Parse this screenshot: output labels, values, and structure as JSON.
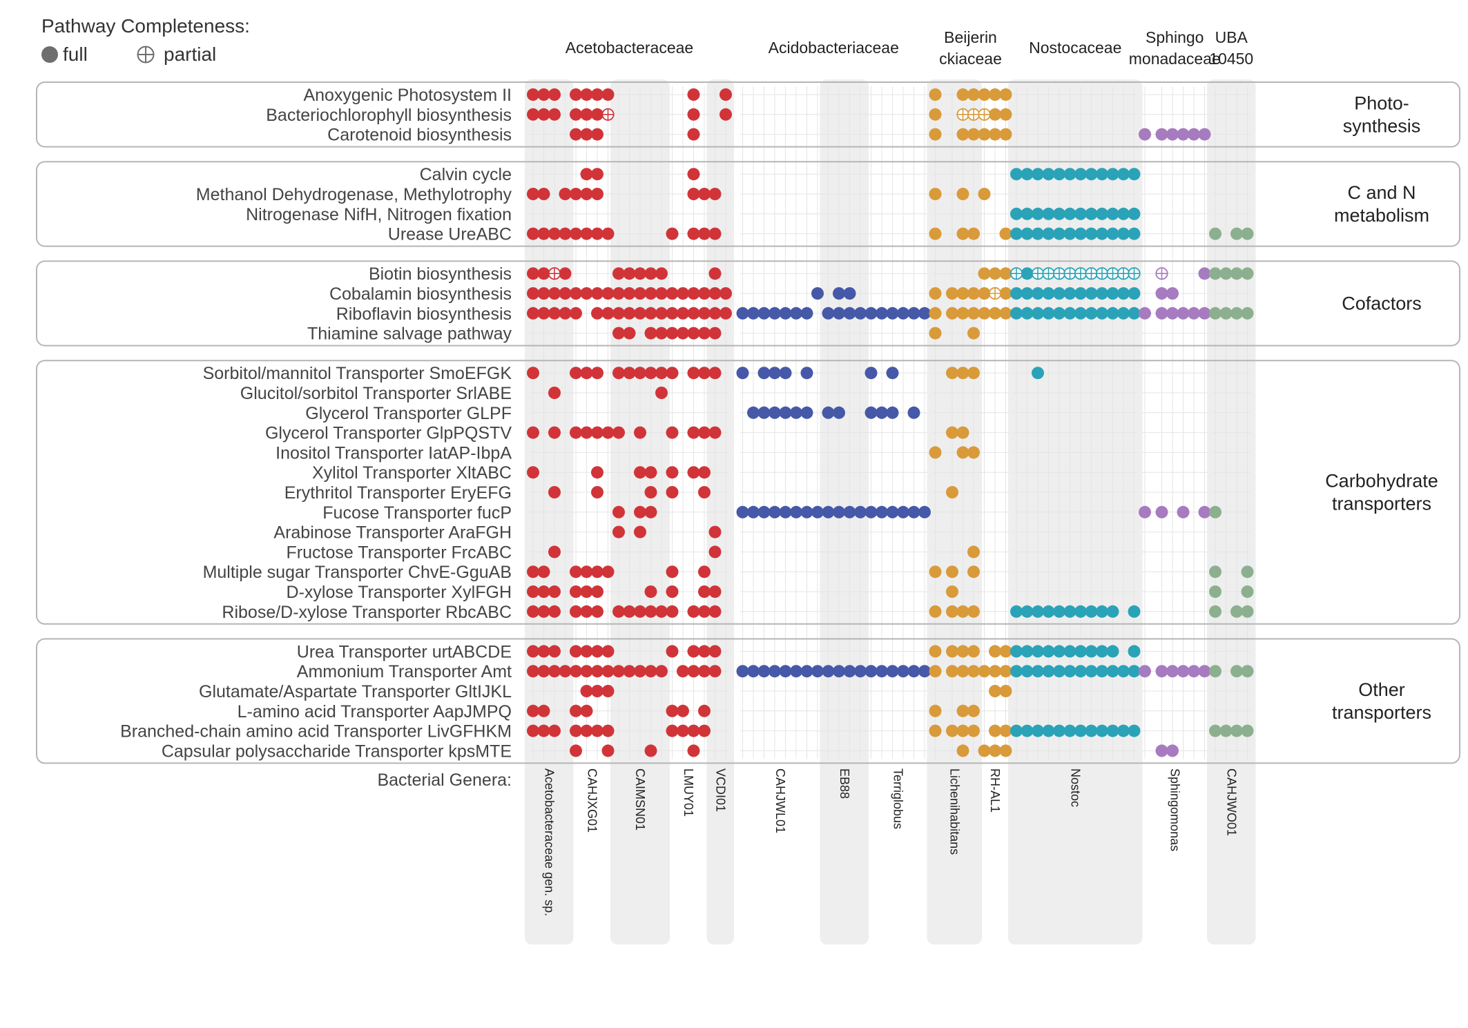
{
  "chart_data": {
    "type": "dot-matrix",
    "legend": {
      "title": "Pathway Completeness:",
      "items": [
        {
          "key": "full",
          "label": "full"
        },
        {
          "key": "partial",
          "label": "partial"
        }
      ]
    },
    "families": [
      {
        "id": "aceto",
        "lines": [
          "Acetobacteraceae"
        ],
        "columns": [
          0,
          18
        ],
        "color": "#d13438"
      },
      {
        "id": "acido",
        "lines": [
          "Acidobacteriaceae"
        ],
        "columns": [
          19,
          36
        ],
        "color": "#4658a8"
      },
      {
        "id": "beije",
        "lines": [
          "Beijerin",
          "ckiaceae"
        ],
        "columns": [
          37,
          43
        ],
        "color": "#d99a3a"
      },
      {
        "id": "nosto",
        "lines": [
          "Nostocaceae"
        ],
        "columns": [
          44,
          55
        ],
        "color": "#2aa3b8"
      },
      {
        "id": "sphin",
        "lines": [
          "Sphingo",
          "monadaceae"
        ],
        "columns": [
          56,
          61
        ],
        "color": "#a77bbf"
      },
      {
        "id": "uba",
        "lines": [
          "UBA",
          "10450"
        ],
        "columns": [
          62,
          65
        ],
        "color": "#8cb08f"
      }
    ],
    "genera_label": "Bacterial Genera:",
    "genera": [
      {
        "name": "Acetobacteraceae gen. sp.",
        "columns": [
          0,
          3
        ],
        "shaded": true
      },
      {
        "name": "CAHJXG01",
        "columns": [
          4,
          7
        ],
        "shaded": false
      },
      {
        "name": "CAIMSN01",
        "columns": [
          8,
          12
        ],
        "shaded": true
      },
      {
        "name": "LMUY01",
        "columns": [
          13,
          16
        ],
        "shaded": false
      },
      {
        "name": "VCDI01",
        "columns": [
          17,
          18
        ],
        "shaded": true
      },
      {
        "name": "CAHJWL01",
        "columns": [
          19,
          26
        ],
        "shaded": false
      },
      {
        "name": "EB88",
        "columns": [
          27,
          30
        ],
        "shaded": true
      },
      {
        "name": "Terriglobus",
        "columns": [
          31,
          36
        ],
        "shaded": false
      },
      {
        "name": "Lichenihabitans",
        "columns": [
          37,
          40
        ],
        "shaded": true
      },
      {
        "name": "RH-AL1",
        "columns": [
          41,
          43
        ],
        "shaded": false
      },
      {
        "name": "Nostoc",
        "columns": [
          44,
          55
        ],
        "shaded": true
      },
      {
        "name": "Sphingomonas",
        "columns": [
          56,
          61
        ],
        "shaded": false
      },
      {
        "name": "CAHJWO01",
        "columns": [
          62,
          65
        ],
        "shaded": true
      }
    ],
    "groups": [
      {
        "label_lines": [
          "Photo-",
          "synthesis"
        ],
        "rows": [
          {
            "label": "Anoxygenic Photosystem II",
            "full": [
              0,
              1,
              2,
              4,
              5,
              6,
              7,
              15,
              18,
              37,
              39,
              40,
              41,
              42,
              43
            ]
          },
          {
            "label": "Bacteriochlorophyll biosynthesis",
            "full": [
              0,
              1,
              2,
              4,
              5,
              6,
              15,
              18,
              37,
              42,
              43
            ],
            "partial": [
              7,
              39,
              40,
              41
            ]
          },
          {
            "label": "Carotenoid biosynthesis",
            "full": [
              4,
              5,
              6,
              15,
              37,
              39,
              40,
              41,
              42,
              43,
              56,
              57,
              58,
              59,
              60,
              61
            ]
          }
        ]
      },
      {
        "label_lines": [
          "C and N",
          "metabolism"
        ],
        "rows": [
          {
            "label": "Calvin cycle",
            "full": [
              5,
              6,
              15,
              44,
              45,
              46,
              47,
              48,
              49,
              50,
              51,
              52,
              53,
              54,
              55
            ]
          },
          {
            "label": "Methanol Dehydrogenase, Methylotrophy",
            "full": [
              0,
              1,
              3,
              4,
              5,
              6,
              15,
              16,
              17,
              37,
              39,
              41
            ]
          },
          {
            "label": "Nitrogenase NifH, Nitrogen fixation",
            "full": [
              44,
              45,
              46,
              47,
              48,
              49,
              50,
              51,
              52,
              53,
              54,
              55
            ]
          },
          {
            "label": "Urease UreABC",
            "full": [
              0,
              1,
              2,
              3,
              4,
              5,
              6,
              7,
              13,
              15,
              16,
              17,
              37,
              39,
              40,
              43,
              44,
              45,
              46,
              47,
              48,
              49,
              50,
              51,
              52,
              53,
              54,
              55,
              62,
              64,
              65
            ]
          }
        ]
      },
      {
        "label_lines": [
          "Cofactors"
        ],
        "rows": [
          {
            "label": "Biotin biosynthesis",
            "full": [
              0,
              1,
              3,
              8,
              9,
              10,
              11,
              12,
              17,
              41,
              42,
              43,
              45,
              61,
              62,
              63,
              64,
              65
            ],
            "partial": [
              2,
              44,
              46,
              47,
              48,
              49,
              50,
              51,
              52,
              53,
              54,
              55,
              57
            ]
          },
          {
            "label": "Cobalamin biosynthesis",
            "full": [
              0,
              1,
              2,
              3,
              4,
              5,
              6,
              7,
              8,
              9,
              10,
              11,
              12,
              13,
              14,
              15,
              16,
              17,
              18,
              26,
              28,
              29,
              37,
              38,
              39,
              40,
              41,
              43,
              44,
              45,
              46,
              47,
              48,
              49,
              50,
              51,
              52,
              53,
              54,
              55,
              57,
              58
            ],
            "partial": [
              42
            ]
          },
          {
            "label": "Riboflavin biosynthesis",
            "full": [
              0,
              1,
              2,
              3,
              4,
              6,
              7,
              8,
              9,
              10,
              11,
              12,
              13,
              14,
              15,
              16,
              17,
              18,
              19,
              20,
              21,
              22,
              23,
              24,
              25,
              27,
              28,
              29,
              30,
              31,
              32,
              33,
              34,
              35,
              36,
              37,
              38,
              39,
              40,
              41,
              42,
              43,
              44,
              45,
              46,
              47,
              48,
              49,
              50,
              51,
              52,
              53,
              54,
              55,
              56,
              57,
              58,
              59,
              60,
              61,
              62,
              63,
              64,
              65
            ]
          },
          {
            "label": "Thiamine salvage pathway",
            "full": [
              8,
              9,
              11,
              12,
              13,
              14,
              15,
              16,
              17,
              37,
              40
            ]
          }
        ]
      },
      {
        "label_lines": [
          "Carbohydrate",
          "transporters"
        ],
        "rows": [
          {
            "label": "Sorbitol/mannitol Transporter SmoEFGK",
            "full": [
              0,
              4,
              5,
              6,
              8,
              9,
              10,
              11,
              12,
              13,
              15,
              16,
              17,
              19,
              21,
              22,
              23,
              25,
              31,
              33,
              38,
              39,
              40,
              46
            ]
          },
          {
            "label": "Glucitol/sorbitol Transporter SrlABE",
            "full": [
              2,
              12
            ]
          },
          {
            "label": "Glycerol Transporter GLPF",
            "full": [
              20,
              21,
              22,
              23,
              24,
              25,
              27,
              28,
              31,
              32,
              33,
              35
            ]
          },
          {
            "label": "Glycerol Transporter GlpPQSTV",
            "full": [
              0,
              2,
              4,
              5,
              6,
              7,
              8,
              10,
              13,
              15,
              16,
              17,
              38,
              39
            ]
          },
          {
            "label": "Inositol Transporter IatAP-IbpA",
            "full": [
              37,
              39,
              40
            ]
          },
          {
            "label": "Xylitol Transporter XltABC",
            "full": [
              0,
              6,
              10,
              11,
              13,
              15,
              16
            ]
          },
          {
            "label": "Erythritol Transporter EryEFG",
            "full": [
              2,
              6,
              11,
              13,
              16,
              38
            ]
          },
          {
            "label": "Fucose Transporter fucP",
            "full": [
              8,
              10,
              11,
              19,
              20,
              21,
              22,
              23,
              24,
              25,
              26,
              27,
              28,
              29,
              30,
              31,
              32,
              33,
              34,
              35,
              36,
              56,
              57,
              59,
              61,
              62
            ]
          },
          {
            "label": "Arabinose Transporter AraFGH",
            "full": [
              8,
              10,
              17
            ]
          },
          {
            "label": "Fructose Transporter FrcABC",
            "full": [
              2,
              17,
              40
            ]
          },
          {
            "label": "Multiple sugar Transporter ChvE-GguAB",
            "full": [
              0,
              1,
              4,
              5,
              6,
              7,
              13,
              16,
              37,
              38,
              40,
              62,
              65
            ]
          },
          {
            "label": "D-xylose Transporter XylFGH",
            "full": [
              0,
              1,
              2,
              4,
              5,
              6,
              11,
              13,
              16,
              17,
              38,
              62,
              65
            ]
          },
          {
            "label": "Ribose/D-xylose Transporter RbcABC",
            "full": [
              0,
              1,
              2,
              4,
              5,
              6,
              8,
              9,
              10,
              11,
              12,
              13,
              15,
              16,
              17,
              37,
              38,
              39,
              40,
              44,
              45,
              46,
              47,
              48,
              49,
              50,
              51,
              52,
              53,
              55,
              62,
              64,
              65
            ]
          }
        ]
      },
      {
        "label_lines": [
          "Other",
          "transporters"
        ],
        "rows": [
          {
            "label": "Urea Transporter urtABCDE",
            "full": [
              0,
              1,
              2,
              4,
              5,
              6,
              7,
              13,
              15,
              16,
              17,
              37,
              38,
              39,
              40,
              42,
              43,
              44,
              45,
              46,
              47,
              48,
              49,
              50,
              51,
              52,
              53,
              55
            ]
          },
          {
            "label": "Ammonium Transporter Amt",
            "full": [
              0,
              1,
              2,
              3,
              4,
              5,
              6,
              7,
              8,
              9,
              10,
              11,
              12,
              14,
              15,
              16,
              17,
              19,
              20,
              21,
              22,
              23,
              24,
              25,
              26,
              27,
              28,
              29,
              30,
              31,
              32,
              33,
              34,
              35,
              36,
              37,
              38,
              39,
              40,
              41,
              42,
              43,
              44,
              45,
              46,
              47,
              48,
              49,
              50,
              51,
              52,
              53,
              54,
              55,
              56,
              57,
              58,
              59,
              60,
              61,
              62,
              64,
              65
            ]
          },
          {
            "label": "Glutamate/Aspartate Transporter GltIJKL",
            "full": [
              5,
              6,
              7,
              42,
              43
            ]
          },
          {
            "label": "L-amino acid Transporter AapJMPQ",
            "full": [
              0,
              1,
              4,
              5,
              13,
              14,
              16,
              37,
              39,
              40
            ]
          },
          {
            "label": "Branched-chain amino acid Transporter LivGFHKM",
            "full": [
              0,
              1,
              2,
              4,
              5,
              6,
              7,
              13,
              14,
              15,
              16,
              37,
              38,
              39,
              40,
              42,
              43,
              44,
              45,
              46,
              47,
              48,
              49,
              50,
              51,
              52,
              53,
              54,
              55,
              62,
              63,
              64,
              65
            ]
          },
          {
            "label": "Capsular polysaccharide Transporter kpsMTE",
            "full": [
              4,
              7,
              11,
              15,
              39,
              41,
              42,
              43,
              57,
              58
            ]
          }
        ]
      }
    ]
  }
}
